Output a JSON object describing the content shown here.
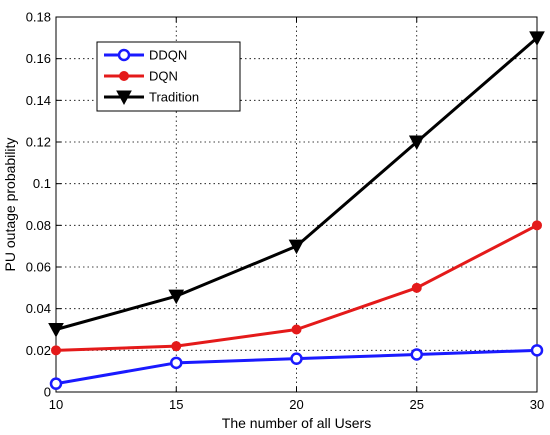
{
  "chart_data": {
    "type": "line",
    "title": "",
    "xlabel": "The number of all Users",
    "ylabel": "PU outage probability",
    "xlim": [
      10,
      30
    ],
    "ylim": [
      0,
      0.18
    ],
    "xticks": [
      10,
      15,
      20,
      25,
      30
    ],
    "yticks": [
      0,
      0.02,
      0.04,
      0.06,
      0.08,
      0.1,
      0.12,
      0.14,
      0.16,
      0.18
    ],
    "ytick_labels": [
      "0",
      "0.02",
      "0.04",
      "0.06",
      "0.08",
      "0.1",
      "0.12",
      "0.14",
      "0.16",
      "0.18"
    ],
    "grid": true,
    "legend_position": "top-left",
    "x": [
      10,
      15,
      20,
      25,
      30
    ],
    "series": [
      {
        "name": "DDQN",
        "values": [
          0.004,
          0.014,
          0.016,
          0.018,
          0.02
        ],
        "color": "#1a1aff",
        "marker": "circle-open"
      },
      {
        "name": "DQN",
        "values": [
          0.02,
          0.022,
          0.03,
          0.05,
          0.08
        ],
        "color": "#e41a1a",
        "marker": "dot"
      },
      {
        "name": "Tradition",
        "values": [
          0.03,
          0.046,
          0.07,
          0.12,
          0.17
        ],
        "color": "#000000",
        "marker": "triangle-down"
      }
    ]
  }
}
